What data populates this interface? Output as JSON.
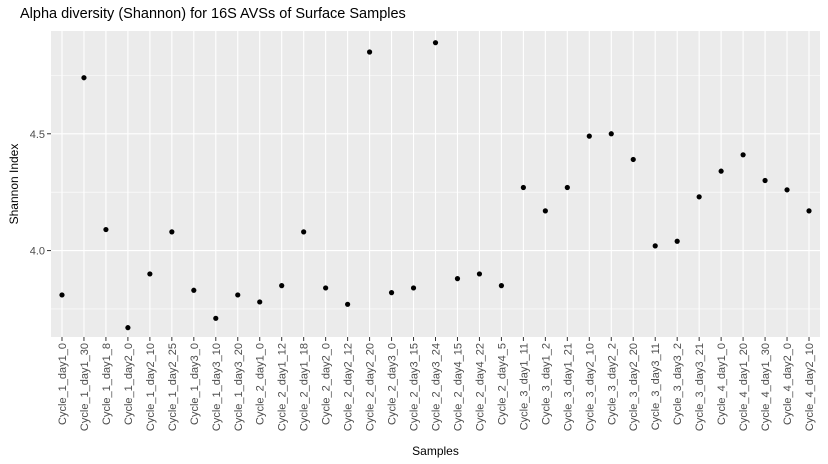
{
  "chart_data": {
    "type": "scatter",
    "title": "Alpha diversity (Shannon) for 16S AVSs of Surface Samples",
    "xlabel": "Samples",
    "ylabel": "Shannon Index",
    "ylim": [
      3.63,
      4.94
    ],
    "yticks": [
      4.0,
      4.5
    ],
    "ytick_labels": [
      "4.0",
      "4.5"
    ],
    "grid": true,
    "legend": "none",
    "colors": {
      "panel_bg": "#ebebeb",
      "grid": "#ffffff",
      "point": "#000000"
    },
    "categories": [
      "Cycle_1_day1_0",
      "Cycle_1_day1_30",
      "Cycle_1_day1_8",
      "Cycle_1_day2_0",
      "Cycle_1_day2_10",
      "Cycle_1_day2_25",
      "Cycle_1_day3_0",
      "Cycle_1_day3_10",
      "Cycle_1_day3_20",
      "Cycle_2_day1_0",
      "Cycle_2_day1_12",
      "Cycle_2_day1_18",
      "Cycle_2_day2_0",
      "Cycle_2_day2_12",
      "Cycle_2_day2_20",
      "Cycle_2_day3_0",
      "Cycle_2_day3_15",
      "Cycle_2_day3_24",
      "Cycle_2_day4_15",
      "Cycle_2_day4_22",
      "Cycle_2_day4_5",
      "Cycle_3_day1_11",
      "Cycle_3_day1_2",
      "Cycle_3_day1_21",
      "Cycle_3_day2_10",
      "Cycle_3_day2_2",
      "Cycle_3_day2_20",
      "Cycle_3_day3_11",
      "Cycle_3_day3_2",
      "Cycle_3_day3_21",
      "Cycle_4_day1_0",
      "Cycle_4_day1_20",
      "Cycle_4_day1_30",
      "Cycle_4_day2_0",
      "Cycle_4_day2_10"
    ],
    "values": [
      3.81,
      4.74,
      4.09,
      3.67,
      3.9,
      4.08,
      3.83,
      3.71,
      3.81,
      3.78,
      3.85,
      4.08,
      3.84,
      3.77,
      4.85,
      3.82,
      3.84,
      4.89,
      3.88,
      3.9,
      3.85,
      4.27,
      4.17,
      4.27,
      4.49,
      4.5,
      4.39,
      4.02,
      4.04,
      4.23,
      4.34,
      4.41,
      4.3,
      4.26,
      4.17
    ]
  }
}
